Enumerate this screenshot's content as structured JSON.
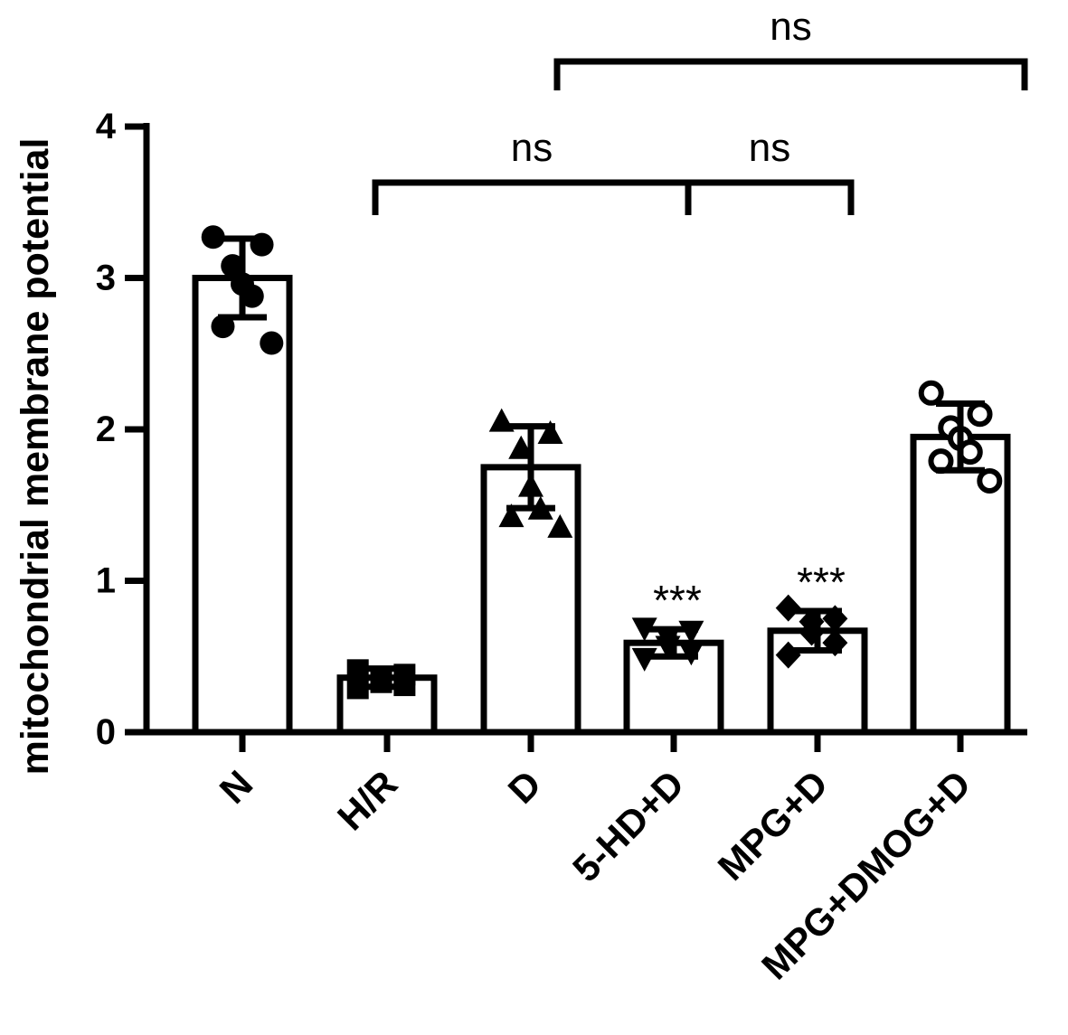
{
  "chart_data": {
    "type": "bar",
    "title": "",
    "xlabel": "",
    "ylabel": "mitochondrial membrane potential",
    "ylim": [
      0,
      4
    ],
    "yticks": [
      0,
      1,
      2,
      3,
      4
    ],
    "grid": false,
    "categories": [
      "N",
      "H/R",
      "D",
      "5-HD+D",
      "MPG+D",
      "MPG+DMOG+D"
    ],
    "values": [
      3.0,
      0.36,
      1.75,
      0.59,
      0.67,
      1.95
    ],
    "sd": [
      0.26,
      0.06,
      0.27,
      0.09,
      0.13,
      0.22
    ],
    "marker_shapes": [
      "circle",
      "square",
      "triangle-up",
      "triangle-down",
      "diamond",
      "circle-open"
    ],
    "points": [
      [
        3.27,
        3.22,
        3.08,
        2.96,
        2.88,
        2.68,
        2.57
      ],
      [
        0.41,
        0.38,
        0.35,
        0.33,
        0.31,
        0.29
      ],
      [
        2.05,
        1.97,
        1.87,
        1.62,
        1.47,
        1.42,
        1.35
      ],
      [
        0.69,
        0.67,
        0.63,
        0.57,
        0.53,
        0.49
      ],
      [
        0.82,
        0.75,
        0.73,
        0.66,
        0.59,
        0.51
      ],
      [
        2.24,
        2.1,
        2.01,
        1.94,
        1.85,
        1.79,
        1.66
      ]
    ],
    "significance": [
      {
        "label": "***",
        "category": "5-HD+D"
      },
      {
        "label": "***",
        "category": "MPG+D"
      }
    ],
    "brackets": [
      {
        "from": "D",
        "to": "MPG+DMOG+D",
        "label": "ns",
        "level": 2
      },
      {
        "from": "H/R",
        "to": "5-HD+D",
        "label": "ns",
        "level": 1
      },
      {
        "from": "5-HD+D",
        "to": "MPG+D",
        "label": "ns",
        "level": 1
      }
    ]
  }
}
